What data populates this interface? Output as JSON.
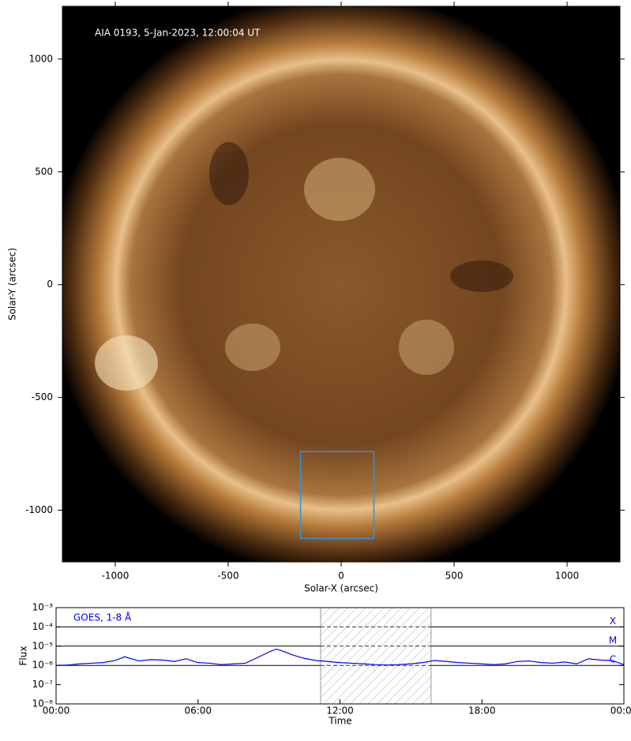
{
  "chart_data": [
    {
      "type": "image",
      "annotation": "AIA 0193, 5-Jan-2023, 12:00:04 UT",
      "xlabel": "Solar-X (arcsec)",
      "ylabel": "Solar-Y (arcsec)",
      "xlim": [
        -1234,
        1234
      ],
      "ylim": [
        -1229,
        1234
      ],
      "xticks": [
        -1000,
        -500,
        0,
        500,
        1000
      ],
      "yticks": [
        -1000,
        -500,
        0,
        500,
        1000
      ],
      "box": {
        "x": [
          -180,
          145
        ],
        "y": [
          -1125,
          -740
        ],
        "color": "#3a8fd8"
      }
    },
    {
      "type": "line",
      "xlabel": "Time",
      "ylabel": "Flux",
      "x": [
        0,
        0.5,
        1,
        1.5,
        2,
        2.5,
        2.9,
        3.5,
        4,
        4.5,
        5,
        5.5,
        6,
        6.5,
        7,
        7.5,
        8,
        8.5,
        9,
        9.3,
        9.5,
        10,
        10.5,
        11,
        11.5,
        12,
        12.5,
        13,
        13.5,
        14,
        14.5,
        15,
        15.5,
        16,
        16.5,
        17,
        17.5,
        18,
        18.5,
        19,
        19.5,
        20,
        20.5,
        21,
        21.5,
        22,
        22.5,
        23,
        23.5,
        24
      ],
      "series": [
        {
          "name": "GOES, 1-8 Å",
          "color": "#0000ff",
          "values": [
            1e-06,
            1.05e-06,
            1.2e-06,
            1.3e-06,
            1.4e-06,
            1.8e-06,
            2.8e-06,
            1.7e-06,
            2e-06,
            1.9e-06,
            1.6e-06,
            2.2e-06,
            1.4e-06,
            1.3e-06,
            1.1e-06,
            1.2e-06,
            1.3e-06,
            2.5e-06,
            5e-06,
            7e-06,
            6e-06,
            3.5e-06,
            2.3e-06,
            1.8e-06,
            1.6e-06,
            1.4e-06,
            1.3e-06,
            1.2e-06,
            1.1e-06,
            1.05e-06,
            1.1e-06,
            1.2e-06,
            1.4e-06,
            1.8e-06,
            1.6e-06,
            1.4e-06,
            1.3e-06,
            1.2e-06,
            1.1e-06,
            1.2e-06,
            1.6e-06,
            1.7e-06,
            1.4e-06,
            1.3e-06,
            1.5e-06,
            1.2e-06,
            2.2e-06,
            1.9e-06,
            1.8e-06,
            1.1e-06
          ]
        }
      ],
      "xlim": [
        0,
        24
      ],
      "xticks": [
        {
          "value": 0,
          "label": "00:00"
        },
        {
          "value": 6,
          "label": "06:00"
        },
        {
          "value": 12,
          "label": "12:00"
        },
        {
          "value": 18,
          "label": "18:00"
        },
        {
          "value": 24,
          "label": "00:00"
        }
      ],
      "yscale": "log",
      "ylim": [
        1e-08,
        0.001
      ],
      "yticks": [
        {
          "value": 1e-08,
          "label": "10⁻⁸"
        },
        {
          "value": 1e-07,
          "label": "10⁻⁷"
        },
        {
          "value": 1e-06,
          "label": "10⁻⁶"
        },
        {
          "value": 1e-05,
          "label": "10⁻⁵"
        },
        {
          "value": 0.0001,
          "label": "10⁻⁴"
        },
        {
          "value": 0.001,
          "label": "10⁻³"
        }
      ],
      "levels": [
        {
          "label": "X",
          "value": 0.0001
        },
        {
          "label": "M",
          "value": 1e-05
        },
        {
          "label": "C",
          "value": 1e-06
        }
      ],
      "shaded": [
        11.18,
        15.85
      ]
    }
  ]
}
